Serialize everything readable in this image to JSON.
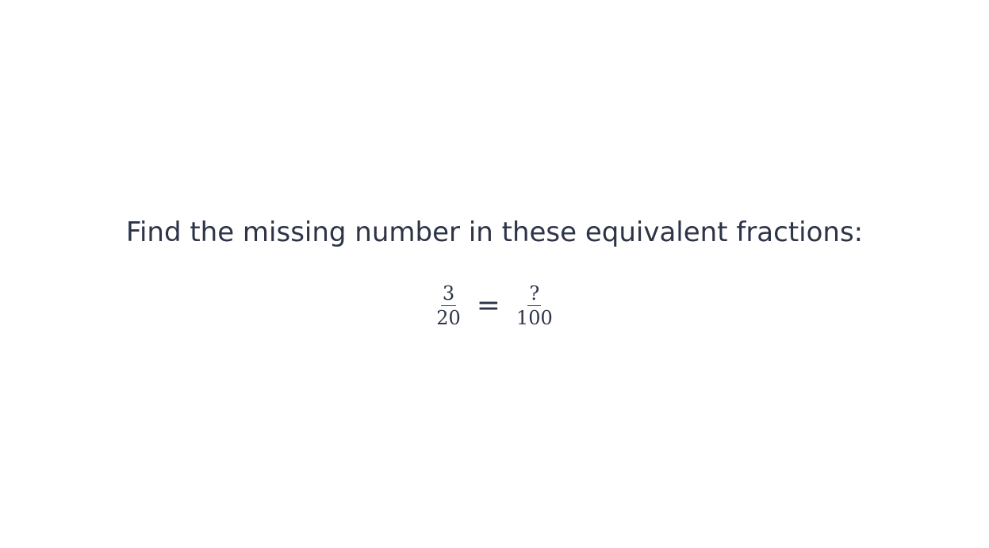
{
  "question": {
    "prompt": "Find the missing number in these equivalent fractions:"
  },
  "equation": {
    "left": {
      "numerator": "3",
      "denominator": "20"
    },
    "operator": "=",
    "right": {
      "numerator": "?",
      "denominator": "100"
    }
  },
  "colors": {
    "text": "#2d3448",
    "background": "#ffffff"
  }
}
